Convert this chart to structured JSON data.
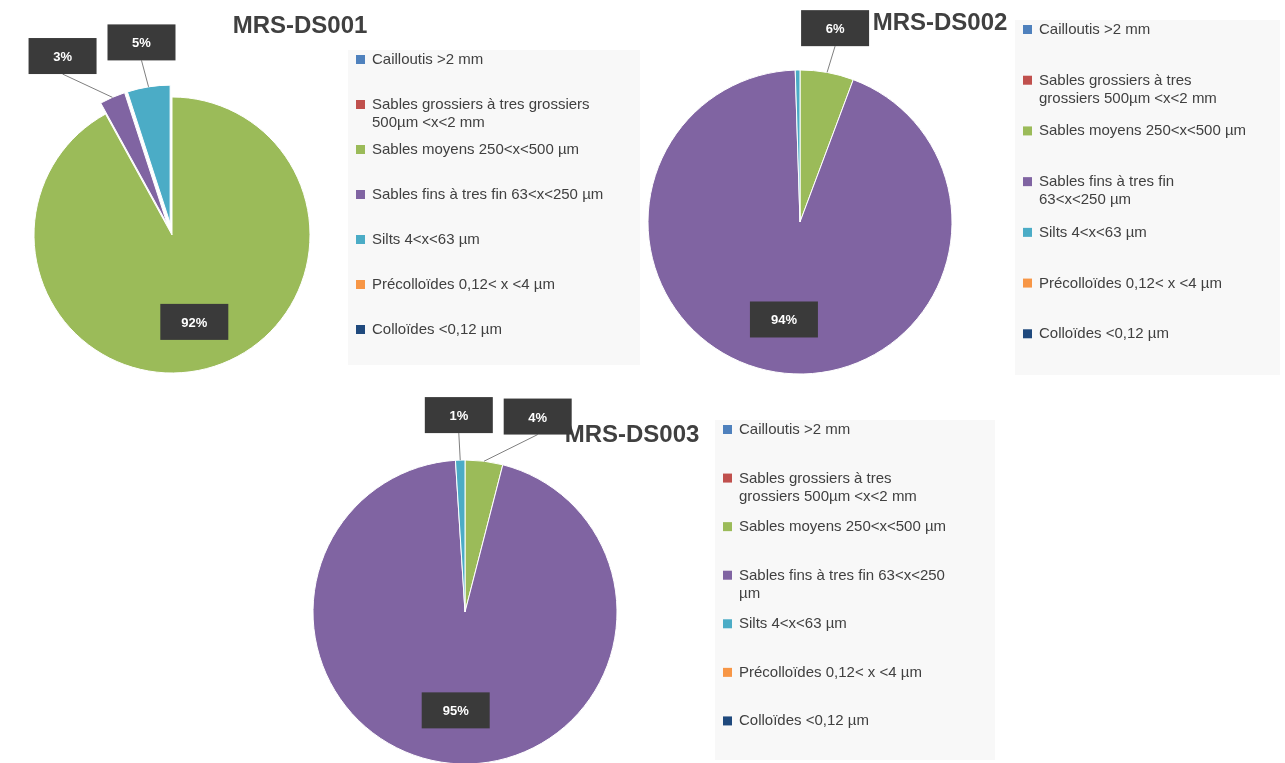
{
  "chart_data": [
    {
      "type": "pie",
      "title": "MRS-DS001",
      "categories": [
        "Cailloutis >2 mm",
        "Sables grossiers à tres grossiers 500µm <x<2 mm",
        "Sables moyens 250<x<500 µm",
        "Sables fins à tres fin 63<x<250 µm",
        "Silts 4<x<63 µm",
        "Précolloïdes 0,12< x <4 µm",
        "Colloïdes <0,12 µm"
      ],
      "values": [
        0,
        0,
        92,
        3,
        5,
        0,
        0
      ],
      "colors": [
        "#4f81bd",
        "#c0504d",
        "#9bbb59",
        "#8064a2",
        "#4bacc6",
        "#f79646",
        "#1f497d"
      ],
      "value_labels": [
        null,
        null,
        "92%",
        "3%",
        "5%",
        null,
        null
      ],
      "legend": "right"
    },
    {
      "type": "pie",
      "title": "MRS-DS002",
      "categories": [
        "Cailloutis >2 mm",
        "Sables grossiers à tres grossiers 500µm <x<2 mm",
        "Sables moyens 250<x<500 µm",
        "Sables fins à tres fin 63<x<250 µm",
        "Silts 4<x<63 µm",
        "Précolloïdes 0,12< x <4 µm",
        "Colloïdes <0,12 µm"
      ],
      "values": [
        0,
        0,
        5.7,
        93.8,
        0.5,
        0,
        0
      ],
      "colors": [
        "#4f81bd",
        "#c0504d",
        "#9bbb59",
        "#8064a2",
        "#4bacc6",
        "#f79646",
        "#1f497d"
      ],
      "value_labels": [
        null,
        null,
        "6%",
        "94%",
        null,
        null,
        null
      ],
      "legend": "right"
    },
    {
      "type": "pie",
      "title": "MRS-DS003",
      "categories": [
        "Cailloutis >2 mm",
        "Sables grossiers à tres grossiers 500µm <x<2 mm",
        "Sables moyens 250<x<500 µm",
        "Sables fins à tres fin 63<x<250 µm",
        "Silts 4<x<63 µm",
        "Précolloïdes 0,12< x <4 µm",
        "Colloïdes <0,12 µm"
      ],
      "values": [
        0,
        0,
        4,
        95,
        1,
        0,
        0
      ],
      "colors": [
        "#4f81bd",
        "#c0504d",
        "#9bbb59",
        "#8064a2",
        "#4bacc6",
        "#f79646",
        "#1f497d"
      ],
      "value_labels": [
        null,
        null,
        "4%",
        "95%",
        "1%",
        null,
        null
      ],
      "legend": "right"
    }
  ]
}
